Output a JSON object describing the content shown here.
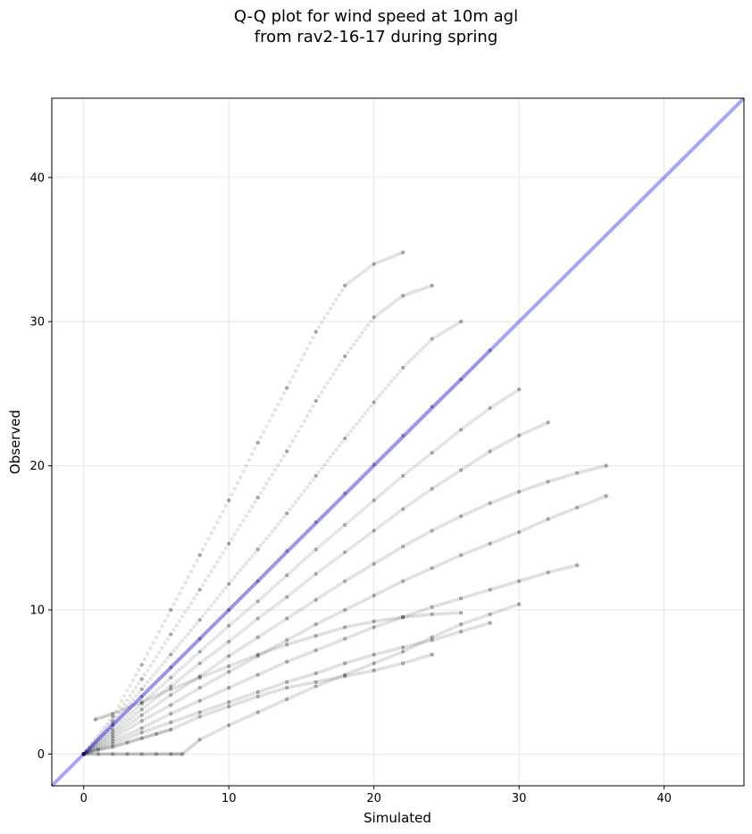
{
  "chart_data": {
    "type": "scatter",
    "title": "Q-Q plot for wind speed at 10m agl",
    "subtitle": "from rav2-16-17 during spring",
    "xlabel": "Simulated",
    "ylabel": "Observed",
    "xlim": [
      -2.2,
      45.5
    ],
    "ylim": [
      -2.2,
      45.5
    ],
    "xticks": [
      0,
      10,
      20,
      30,
      40
    ],
    "yticks": [
      0,
      10,
      20,
      30,
      40
    ],
    "grid": true,
    "point_color": "#000000",
    "point_alpha": 0.1,
    "reference_line": {
      "from": [
        -2.2,
        -2.2
      ],
      "to": [
        45.5,
        45.5
      ],
      "color": "#0000ee",
      "alpha": 0.35
    },
    "series": [
      {
        "x": [
          0,
          2,
          4,
          6,
          8,
          10,
          12,
          14,
          16,
          18,
          20,
          22
        ],
        "y": [
          0,
          2.6,
          6.2,
          10.0,
          13.8,
          17.6,
          21.6,
          25.4,
          29.3,
          32.5,
          34.0,
          34.8
        ]
      },
      {
        "x": [
          0,
          2,
          4,
          6,
          8,
          10,
          12,
          14,
          16,
          18,
          20,
          22,
          24
        ],
        "y": [
          0,
          2.3,
          5.2,
          8.3,
          11.4,
          14.6,
          17.8,
          21.0,
          24.5,
          27.6,
          30.3,
          31.8,
          32.5
        ]
      },
      {
        "x": [
          0,
          2,
          4,
          6,
          8,
          10,
          12,
          14,
          16,
          18,
          20,
          22,
          24,
          26
        ],
        "y": [
          0,
          2.1,
          4.5,
          6.9,
          9.3,
          11.8,
          14.2,
          16.7,
          19.3,
          21.9,
          24.4,
          26.8,
          28.8,
          30.0
        ]
      },
      {
        "x": [
          0,
          2,
          4,
          6,
          8,
          10,
          12,
          14,
          16,
          18,
          20,
          22,
          24,
          26,
          28
        ],
        "y": [
          0,
          2.0,
          4.0,
          6.0,
          8.0,
          10.0,
          12.0,
          14.1,
          16.1,
          18.1,
          20.1,
          22.1,
          24.1,
          26.0,
          28.0
        ]
      },
      {
        "x": [
          0,
          2,
          4,
          6,
          8,
          10,
          12,
          14,
          16,
          18,
          20,
          22,
          24,
          26,
          28,
          30
        ],
        "y": [
          0,
          1.7,
          3.5,
          5.3,
          7.1,
          8.9,
          10.6,
          12.4,
          14.2,
          15.9,
          17.6,
          19.3,
          20.9,
          22.5,
          24.0,
          25.3
        ]
      },
      {
        "x": [
          0,
          2,
          4,
          6,
          8,
          10,
          12,
          14,
          16,
          18,
          20,
          22,
          24,
          26,
          28,
          30,
          32
        ],
        "y": [
          0,
          1.5,
          3.1,
          4.7,
          6.3,
          7.8,
          9.4,
          10.9,
          12.5,
          14.0,
          15.5,
          17.0,
          18.4,
          19.7,
          21.0,
          22.1,
          23.0
        ]
      },
      {
        "x": [
          0,
          2,
          4,
          6,
          8,
          10,
          12,
          14,
          16,
          18,
          20,
          22,
          24,
          26,
          28,
          30,
          32,
          34,
          36
        ],
        "y": [
          0,
          1.3,
          2.7,
          4.1,
          5.4,
          6.8,
          8.1,
          9.4,
          10.7,
          12.0,
          13.2,
          14.4,
          15.5,
          16.5,
          17.4,
          18.2,
          18.9,
          19.5,
          20.0
        ]
      },
      {
        "x": [
          0,
          2,
          4,
          6,
          8,
          10,
          12,
          14,
          16,
          18,
          20,
          22,
          24,
          26,
          28,
          30,
          32,
          34,
          36
        ],
        "y": [
          0,
          1.1,
          2.3,
          3.4,
          4.6,
          5.7,
          6.8,
          7.9,
          9.0,
          10.0,
          11.0,
          12.0,
          12.9,
          13.8,
          14.6,
          15.4,
          16.3,
          17.1,
          17.9
        ]
      },
      {
        "x": [
          0,
          2,
          4,
          6,
          8,
          10,
          12,
          14,
          16,
          18,
          20,
          22,
          24,
          26,
          28,
          30,
          32,
          34
        ],
        "y": [
          0,
          0.9,
          1.8,
          2.8,
          3.7,
          4.6,
          5.5,
          6.4,
          7.2,
          8.0,
          8.8,
          9.5,
          10.2,
          10.8,
          11.4,
          12.0,
          12.6,
          13.1
        ]
      },
      {
        "x": [
          0,
          2,
          4,
          6,
          8,
          10,
          12,
          14,
          16,
          18,
          20,
          22,
          24,
          26,
          28
        ],
        "y": [
          0,
          0.7,
          1.5,
          2.2,
          2.9,
          3.6,
          4.3,
          5.0,
          5.6,
          6.3,
          6.9,
          7.4,
          7.9,
          8.5,
          9.1
        ]
      },
      {
        "x": [
          0.8,
          2,
          4,
          6,
          8,
          10,
          12,
          14,
          16,
          18,
          20,
          22,
          24,
          26
        ],
        "y": [
          2.4,
          2.8,
          3.6,
          4.5,
          5.3,
          6.1,
          6.9,
          7.6,
          8.2,
          8.8,
          9.2,
          9.5,
          9.7,
          9.8
        ]
      },
      {
        "x": [
          0,
          1,
          2,
          3,
          4,
          5,
          6,
          6.8,
          8,
          10,
          12,
          14,
          16,
          18,
          20,
          22,
          24,
          26,
          28,
          30
        ],
        "y": [
          0,
          0,
          0,
          0,
          0,
          0,
          0,
          0,
          1.0,
          2.0,
          2.9,
          3.8,
          4.7,
          5.5,
          6.3,
          7.1,
          8.1,
          9.0,
          9.7,
          10.4
        ]
      },
      {
        "x": [
          0,
          1,
          2,
          3,
          4,
          5,
          6,
          8,
          10,
          12,
          14,
          16,
          18,
          20,
          22,
          24
        ],
        "y": [
          0,
          0.3,
          0.5,
          0.8,
          1.1,
          1.4,
          1.7,
          2.6,
          3.3,
          4.0,
          4.6,
          5.0,
          5.4,
          5.8,
          6.3,
          6.9
        ]
      }
    ]
  }
}
